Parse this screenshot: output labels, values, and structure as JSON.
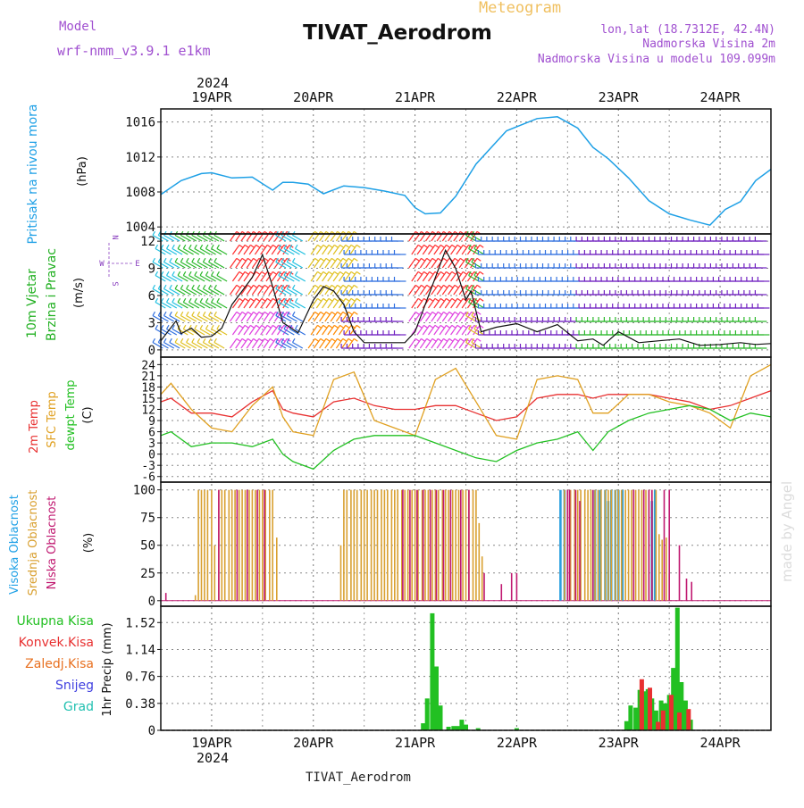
{
  "header": {
    "model_label": "Model",
    "model_name": "wrf-nmm_v3.9.1 e1km",
    "title": "TIVAT_Aerodrom",
    "product": "Meteogram",
    "lonlat": "lon,lat (18.7312E, 42.4N)",
    "elevation": "Nadmorska Visina 2m",
    "model_elevation": "Nadmorska Visina u modelu 109.099m"
  },
  "footer_title": "TIVAT_Aerodrom",
  "watermark": "made by Angel",
  "colors": {
    "pressure": "#1ea0e6",
    "wind": "#2ab82a",
    "temp2m": "#e83030",
    "sfc_temp": "#e0a020",
    "dewpoint": "#22c022",
    "cloud_high": "#2aa0e0",
    "cloud_mid": "#d9a030",
    "cloud_low": "#c01870",
    "precip_total": "#22c022",
    "precip_conv": "#e83030",
    "precip_frz": "#e87020",
    "precip_snow": "#4040e0",
    "precip_hail": "#20c0b0",
    "compass": "#8a40c0",
    "header_purple": "#a050d0",
    "product_orange": "#f0c060"
  },
  "time_axis": {
    "year": "2024",
    "day_labels": [
      "19APR",
      "20APR",
      "21APR",
      "22APR",
      "23APR",
      "24APR"
    ],
    "range_days": [
      -0.5,
      5.5
    ]
  },
  "compass": {
    "n_label": "N",
    "s_label": "S",
    "w_label": "W",
    "e_label": "E"
  },
  "chart_data": [
    {
      "type": "line",
      "panel": "pressure",
      "ylabel_main": "Pritisak na nivou mora",
      "ylabel_unit": "(hPa)",
      "yticks": [
        "1004",
        "1008",
        "1012",
        "1016"
      ],
      "ylim": [
        1003.2,
        1017.5
      ],
      "x": [
        -0.5,
        -0.3,
        -0.1,
        0.0,
        0.2,
        0.4,
        0.6,
        0.7,
        0.8,
        0.95,
        1.1,
        1.3,
        1.5,
        1.7,
        1.9,
        2.0,
        2.1,
        2.25,
        2.4,
        2.6,
        2.9,
        3.2,
        3.4,
        3.6,
        3.75,
        3.9,
        4.1,
        4.3,
        4.5,
        4.7,
        4.9,
        5.05,
        5.2,
        5.35,
        5.5
      ],
      "values": [
        1007.7,
        1009.3,
        1010.1,
        1010.2,
        1009.6,
        1009.7,
        1008.2,
        1009.1,
        1009.1,
        1008.9,
        1007.8,
        1008.7,
        1008.5,
        1008.1,
        1007.6,
        1006.2,
        1005.5,
        1005.6,
        1007.5,
        1011.2,
        1015.0,
        1016.4,
        1016.6,
        1015.3,
        1013.1,
        1011.8,
        1009.6,
        1007.0,
        1005.5,
        1004.8,
        1004.2,
        1006.0,
        1006.9,
        1009.3,
        1010.6
      ]
    },
    {
      "type": "line",
      "panel": "wind",
      "ylabel_main": "10m Vjetar",
      "ylabel_sub": "Brzina i Pravac",
      "ylabel_unit": "(m/s)",
      "yticks": [
        "0",
        "3",
        "6",
        "9",
        "12"
      ],
      "ylim": [
        -0.8,
        12.8
      ],
      "x": [
        -0.5,
        -0.35,
        -0.3,
        -0.2,
        -0.1,
        0.0,
        0.1,
        0.2,
        0.3,
        0.4,
        0.5,
        0.6,
        0.7,
        0.85,
        1.0,
        1.1,
        1.2,
        1.3,
        1.4,
        1.5,
        1.7,
        1.9,
        2.0,
        2.1,
        2.2,
        2.3,
        2.4,
        2.5,
        2.55,
        2.65,
        2.8,
        3.0,
        3.2,
        3.4,
        3.6,
        3.75,
        3.85,
        4.0,
        4.1,
        4.2,
        4.4,
        4.6,
        4.8,
        5.0,
        5.2,
        5.35,
        5.5
      ],
      "values": [
        1.0,
        3.2,
        1.8,
        2.4,
        1.4,
        1.5,
        2.4,
        5.0,
        6.5,
        8.0,
        10.5,
        7.0,
        3.0,
        1.9,
        5.5,
        7.0,
        6.5,
        5.0,
        2.0,
        0.8,
        0.8,
        0.8,
        2.0,
        5.0,
        8.0,
        11.0,
        9.0,
        5.5,
        6.5,
        2.0,
        2.5,
        2.9,
        2.0,
        2.8,
        1.0,
        1.2,
        0.5,
        2.0,
        1.4,
        0.8,
        1.0,
        1.2,
        0.5,
        0.6,
        0.8,
        0.6,
        0.7
      ]
    },
    {
      "type": "line",
      "panel": "temperature",
      "ylabel_a": "2m Temp",
      "ylabel_b": "SFC Temp",
      "ylabel_c": "dewpt Temp",
      "ylabel_unit": "(C)",
      "yticks": [
        "-6",
        "-3",
        "0",
        "3",
        "6",
        "9",
        "12",
        "15",
        "18",
        "21",
        "24"
      ],
      "ylim": [
        -7.5,
        26
      ],
      "x": [
        -0.5,
        -0.4,
        -0.2,
        0.0,
        0.2,
        0.4,
        0.6,
        0.7,
        0.8,
        1.0,
        1.2,
        1.4,
        1.6,
        1.8,
        2.0,
        2.2,
        2.4,
        2.6,
        2.8,
        3.0,
        3.2,
        3.4,
        3.6,
        3.75,
        3.9,
        4.1,
        4.3,
        4.5,
        4.7,
        4.9,
        5.1,
        5.3,
        5.5
      ],
      "series": [
        {
          "name": "2m Temp",
          "values": [
            14,
            15,
            11,
            11,
            10,
            14,
            17,
            12,
            11,
            10,
            14,
            15,
            13,
            12,
            12,
            13,
            13,
            11,
            9,
            10,
            15,
            16,
            16,
            15,
            16,
            16,
            16,
            15,
            14,
            12,
            13,
            15,
            17
          ]
        },
        {
          "name": "SFC Temp",
          "values": [
            16,
            19,
            12,
            7,
            6,
            13,
            18,
            10,
            6,
            5,
            20,
            22,
            9,
            7,
            5,
            20,
            23,
            14,
            5,
            4,
            20,
            21,
            20,
            11,
            11,
            16,
            16,
            14,
            13,
            11,
            7,
            21,
            24
          ]
        },
        {
          "name": "dewpt Temp",
          "values": [
            5,
            6,
            2,
            3,
            3,
            2,
            4,
            0,
            -2,
            -4,
            1,
            4,
            5,
            5,
            5,
            3,
            1,
            -1,
            -2,
            1,
            3,
            4,
            6,
            1,
            6,
            9,
            11,
            12,
            13,
            12,
            9,
            11,
            10
          ]
        }
      ]
    },
    {
      "type": "bar",
      "panel": "clouds",
      "ylabel_a": "Visoka Oblacnost",
      "ylabel_b": "Srednja Oblacnost",
      "ylabel_c": "Niska Oblacnost",
      "ylabel_unit": "(%)",
      "yticks": [
        "0",
        "25",
        "50",
        "75",
        "100"
      ],
      "ylim": [
        -5,
        107
      ],
      "series": [
        {
          "name": "Visoka Oblacnost",
          "times": [
            3.43,
            3.47,
            3.77,
            3.82,
            3.87,
            3.9,
            3.93,
            3.97,
            4.0,
            4.04,
            4.33,
            4.36
          ],
          "values": [
            100,
            100,
            100,
            100,
            100,
            90,
            100,
            100,
            100,
            100,
            90,
            100
          ]
        },
        {
          "name": "Srednja Oblacnost",
          "times": [
            -0.16,
            -0.13,
            -0.1,
            -0.07,
            -0.04,
            0.0,
            0.03,
            0.07,
            0.1,
            0.13,
            0.17,
            0.2,
            0.23,
            0.27,
            0.3,
            0.33,
            0.37,
            0.4,
            0.43,
            0.47,
            0.5,
            0.53,
            0.57,
            0.6,
            0.64,
            1.27,
            1.3,
            1.33,
            1.37,
            1.4,
            1.43,
            1.47,
            1.5,
            1.53,
            1.57,
            1.6,
            1.63,
            1.67,
            1.7,
            1.73,
            1.77,
            1.8,
            1.83,
            1.87,
            1.9,
            1.93,
            1.97,
            2.0,
            2.03,
            2.07,
            2.1,
            2.13,
            2.17,
            2.2,
            2.23,
            2.27,
            2.3,
            2.33,
            2.37,
            2.4,
            2.43,
            2.47,
            2.5,
            2.53,
            2.57,
            2.6,
            2.63,
            2.66,
            3.47,
            3.5,
            3.53,
            3.57,
            3.6,
            3.63,
            3.67,
            3.7,
            3.73,
            3.77,
            3.8,
            3.83,
            3.87,
            3.9,
            3.93,
            3.97,
            4.0,
            4.03,
            4.07,
            4.1,
            4.13,
            4.17,
            4.2,
            4.23,
            4.27,
            4.3,
            4.33,
            4.37,
            4.4,
            4.43,
            4.47,
            4.5
          ],
          "values": [
            5,
            100,
            100,
            100,
            100,
            100,
            50,
            100,
            100,
            100,
            100,
            100,
            100,
            100,
            100,
            100,
            100,
            100,
            100,
            100,
            100,
            100,
            100,
            100,
            57,
            50,
            100,
            100,
            100,
            100,
            100,
            100,
            100,
            100,
            100,
            100,
            100,
            100,
            100,
            100,
            100,
            100,
            100,
            100,
            100,
            100,
            100,
            100,
            100,
            100,
            100,
            100,
            100,
            100,
            100,
            100,
            100,
            100,
            100,
            100,
            100,
            100,
            100,
            100,
            100,
            100,
            70,
            40,
            100,
            100,
            100,
            100,
            100,
            100,
            100,
            100,
            100,
            100,
            100,
            100,
            100,
            100,
            100,
            100,
            100,
            100,
            100,
            100,
            100,
            100,
            100,
            100,
            100,
            100,
            100,
            100,
            60,
            55,
            57,
            25
          ]
        },
        {
          "name": "Niska Oblacnost",
          "times": [
            -0.45,
            0.07,
            0.25,
            0.35,
            0.45,
            0.52,
            1.88,
            1.95,
            2.02,
            2.08,
            2.15,
            2.21,
            2.28,
            2.35,
            2.45,
            2.53,
            2.68,
            2.85,
            2.95,
            3.0,
            3.5,
            3.52,
            3.58,
            3.62,
            3.75,
            4.15,
            4.25,
            4.3,
            4.33,
            4.45,
            4.5,
            4.6,
            4.67,
            4.72
          ],
          "values": [
            7,
            100,
            100,
            100,
            100,
            100,
            100,
            100,
            100,
            100,
            100,
            100,
            100,
            100,
            100,
            100,
            25,
            15,
            25,
            25,
            100,
            100,
            100,
            90,
            100,
            100,
            100,
            100,
            100,
            100,
            100,
            50,
            20,
            17
          ]
        }
      ]
    },
    {
      "type": "bar",
      "panel": "precip",
      "legend": [
        "Ukupna Kisa",
        "Konvek.Kisa",
        "Zaledj.Kisa",
        "Snijeg",
        "Grad"
      ],
      "ylabel_unit": "1hr Precip (mm)",
      "yticks": [
        "0",
        "0.38",
        "0.76",
        "1.14",
        "1.52"
      ],
      "ylim": [
        0,
        1.75
      ],
      "series": [
        {
          "name": "Ukupna Kisa",
          "times": [
            2.08,
            2.12,
            2.17,
            2.21,
            2.25,
            2.33,
            2.38,
            2.42,
            2.46,
            2.5,
            2.62,
            3.0,
            4.08,
            4.12,
            4.17,
            4.21,
            4.25,
            4.29,
            4.33,
            4.37,
            4.42,
            4.46,
            4.5,
            4.54,
            4.58,
            4.62,
            4.66,
            4.71
          ],
          "values": [
            0.1,
            0.45,
            1.65,
            0.9,
            0.35,
            0.05,
            0.06,
            0.06,
            0.15,
            0.08,
            0.03,
            0.03,
            0.13,
            0.35,
            0.32,
            0.57,
            0.55,
            0.58,
            0.45,
            0.28,
            0.42,
            0.38,
            0.5,
            0.88,
            1.73,
            0.68,
            0.42,
            0.15
          ]
        },
        {
          "name": "Konvek.Kisa",
          "times": [
            4.23,
            4.31,
            4.39,
            4.44,
            4.52,
            4.6,
            4.69
          ],
          "values": [
            0.72,
            0.6,
            0.12,
            0.28,
            0.5,
            0.25,
            0.3
          ]
        }
      ]
    }
  ]
}
